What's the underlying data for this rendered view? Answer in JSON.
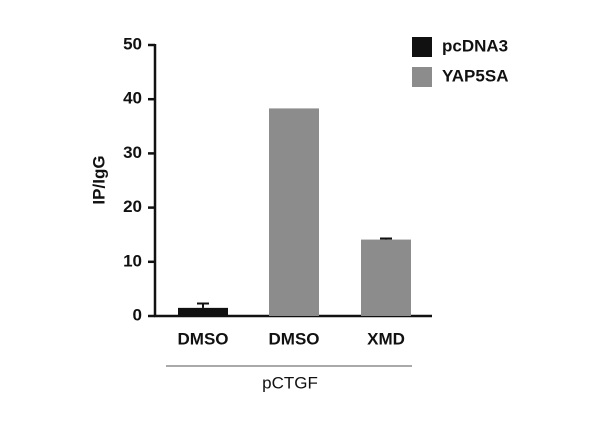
{
  "chart_data": {
    "type": "bar",
    "y_label": "IP/IgG",
    "group_label": "pCTGF",
    "categories": [
      "DMSO",
      "DMSO",
      "XMD"
    ],
    "series": [
      {
        "name": "pcDNA3",
        "color": "#111111",
        "values": [
          1.5,
          null,
          null
        ],
        "errors": [
          0.8,
          null,
          null
        ]
      },
      {
        "name": "YAP5SA",
        "color": "#8c8c8c",
        "values": [
          null,
          38.3,
          14.1
        ],
        "errors": [
          null,
          null,
          0.2
        ]
      }
    ],
    "ylim": [
      0,
      50
    ],
    "yticks": [
      0,
      10,
      20,
      30,
      40,
      50
    ],
    "grid": false,
    "legend": "upper right"
  }
}
